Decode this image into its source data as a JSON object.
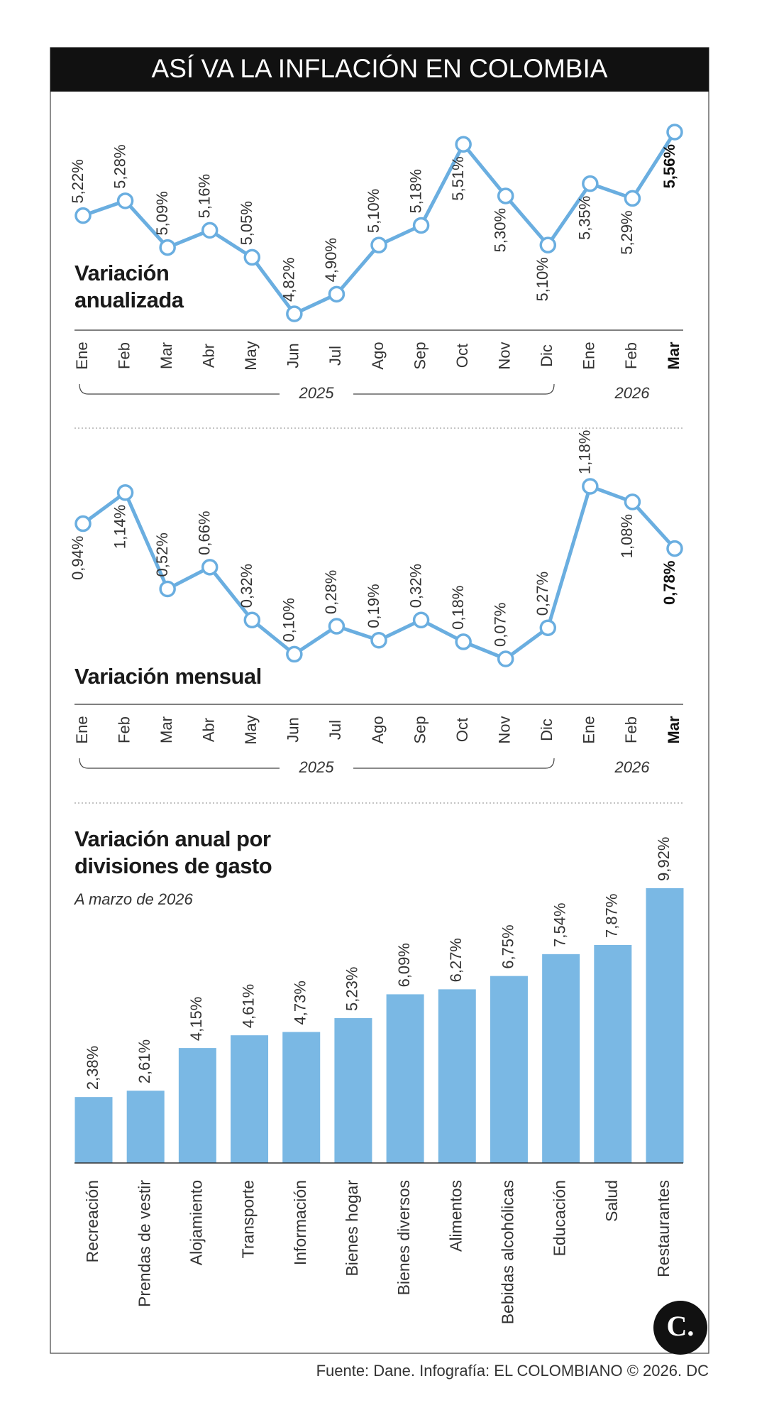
{
  "title": "ASÍ VA LA INFLACIÓN EN COLOMBIA",
  "chart_data": [
    {
      "type": "line",
      "title": "Variación anualizada",
      "categories": [
        "Ene",
        "Feb",
        "Mar",
        "Abr",
        "May",
        "Jun",
        "Jul",
        "Ago",
        "Sep",
        "Oct",
        "Nov",
        "Dic",
        "Ene",
        "Feb",
        "Mar"
      ],
      "year_labels": [
        "2025",
        "2026"
      ],
      "values": [
        5.22,
        5.28,
        5.09,
        5.16,
        5.05,
        4.82,
        4.9,
        5.1,
        5.18,
        5.51,
        5.3,
        5.1,
        5.35,
        5.29,
        5.56
      ],
      "value_labels": [
        "5,22%",
        "5,28%",
        "5,09%",
        "5,16%",
        "5,05%",
        "4,82%",
        "4,90%",
        "5,10%",
        "5,18%",
        "5,51%",
        "5,30%",
        "5,10%",
        "5,35%",
        "5,29%",
        "5,56%"
      ],
      "color": "#6aaee0"
    },
    {
      "type": "line",
      "title": "Variación mensual",
      "categories": [
        "Ene",
        "Feb",
        "Mar",
        "Abr",
        "May",
        "Jun",
        "Jul",
        "Ago",
        "Sep",
        "Oct",
        "Nov",
        "Dic",
        "Ene",
        "Feb",
        "Mar"
      ],
      "year_labels": [
        "2025",
        "2026"
      ],
      "values": [
        0.94,
        1.14,
        0.52,
        0.66,
        0.32,
        0.1,
        0.28,
        0.19,
        0.32,
        0.18,
        0.07,
        0.27,
        1.18,
        1.08,
        0.78
      ],
      "value_labels": [
        "0,94%",
        "1,14%",
        "0,52%",
        "0,66%",
        "0,32%",
        "0,10%",
        "0,28%",
        "0,19%",
        "0,32%",
        "0,18%",
        "0,07%",
        "0,27%",
        "1,18%",
        "1,08%",
        "0,78%"
      ],
      "color": "#6aaee0"
    },
    {
      "type": "bar",
      "title": "Variación anual por divisiones de gasto",
      "subtitle": "A marzo de 2026",
      "categories": [
        "Recreación",
        "Prendas de vestir",
        "Alojamiento",
        "Transporte",
        "Información",
        "Bienes hogar",
        "Bienes diversos",
        "Alimentos",
        "Bebidas alcohólicas",
        "Educación",
        "Salud",
        "Restaurantes"
      ],
      "values": [
        2.38,
        2.61,
        4.15,
        4.61,
        4.73,
        5.23,
        6.09,
        6.27,
        6.75,
        7.54,
        7.87,
        9.92
      ],
      "value_labels": [
        "2,38%",
        "2,61%",
        "4,15%",
        "4,61%",
        "4,73%",
        "5,23%",
        "6,09%",
        "6,27%",
        "6,75%",
        "7,54%",
        "7,87%",
        "9,92%"
      ],
      "color": "#7ab8e4"
    }
  ],
  "source": "Fuente: Dane. Infografía: EL COLOMBIANO © 2026. DC",
  "logo": "C."
}
